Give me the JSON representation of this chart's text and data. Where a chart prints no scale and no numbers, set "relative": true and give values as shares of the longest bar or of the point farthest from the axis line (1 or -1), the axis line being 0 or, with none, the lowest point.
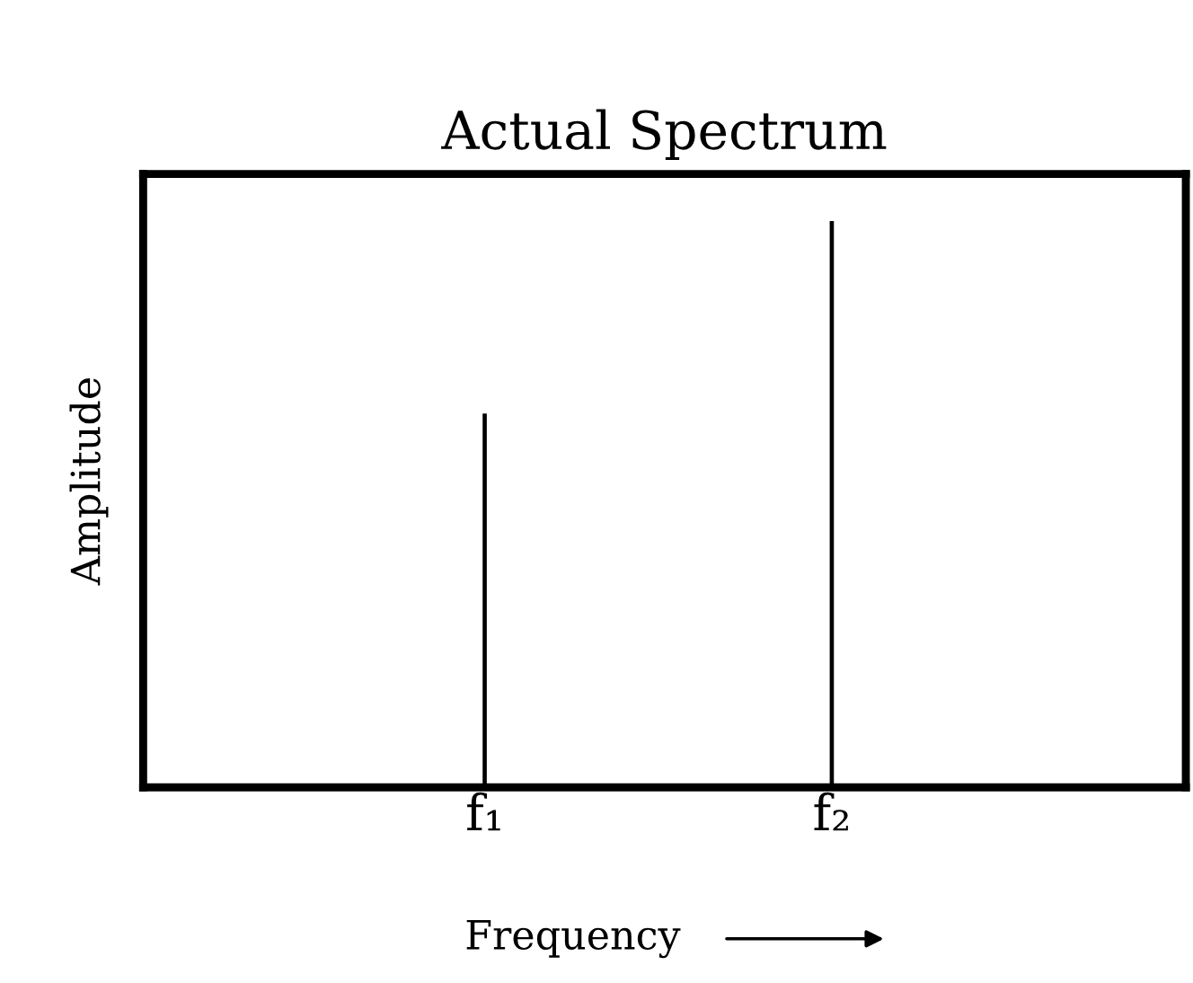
{
  "chart_data": {
    "type": "bar",
    "title": "Actual Spectrum",
    "xlabel": "Frequency",
    "ylabel": "Amplitude",
    "categories": [
      "f₁",
      "f₂"
    ],
    "values": [
      0.66,
      1
    ],
    "color": "#000000",
    "relative": true,
    "grid": false,
    "legend": false
  }
}
